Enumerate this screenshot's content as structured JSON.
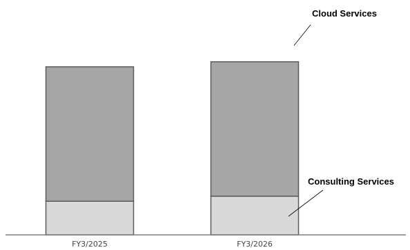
{
  "chart_data": {
    "type": "bar",
    "stacked": true,
    "categories": [
      "FY3/2025",
      "FY3/2026"
    ],
    "series": [
      {
        "name": "Consulting Services",
        "values": [
          20,
          23
        ]
      },
      {
        "name": "Cloud Services",
        "values": [
          80,
          80
        ]
      }
    ],
    "title": "",
    "xlabel": "",
    "ylabel": "",
    "ylim": [
      0,
      110
    ],
    "grid": false,
    "legend": "none",
    "callouts": [
      {
        "series": "Cloud Services",
        "text": "Cloud Services"
      },
      {
        "series": "Consulting Services",
        "text": "Consulting Services"
      }
    ],
    "colors": {
      "Cloud Services": "#a6a6a6",
      "Consulting Services": "#d9d9d9",
      "bar_border": "#5a5a5a",
      "axis": "#7f7f7f"
    }
  }
}
